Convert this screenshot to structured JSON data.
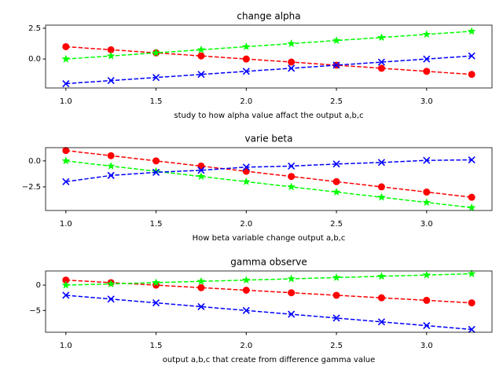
{
  "chart_data": [
    {
      "type": "line",
      "title": "change alpha",
      "xlabel": "study to how alpha value affact the output a,b,c",
      "x": [
        1.0,
        1.25,
        1.5,
        1.75,
        2.0,
        2.25,
        2.5,
        2.75,
        3.0,
        3.25
      ],
      "series": [
        {
          "color": "#ff0000",
          "marker": "o",
          "values": [
            1.0,
            0.75,
            0.5,
            0.25,
            0.0,
            -0.25,
            -0.5,
            -0.75,
            -1.0,
            -1.25
          ]
        },
        {
          "color": "#00ff00",
          "marker": "*",
          "values": [
            0.0,
            0.25,
            0.5,
            0.75,
            1.0,
            1.25,
            1.5,
            1.75,
            2.0,
            2.25
          ]
        },
        {
          "color": "#0000ff",
          "marker": "x",
          "values": [
            -2.0,
            -1.75,
            -1.5,
            -1.25,
            -1.0,
            -0.75,
            -0.5,
            -0.25,
            0.0,
            0.25
          ]
        }
      ],
      "xlim": [
        0.8875,
        3.3625
      ],
      "ylim": [
        -2.35,
        2.75
      ],
      "xticks": [
        {
          "value": 1,
          "label": "1.0"
        },
        1.5,
        {
          "value": 2,
          "label": "2.0"
        },
        2.5,
        {
          "value": 3,
          "label": "3.0"
        }
      ],
      "yticks": [
        {
          "value": 0,
          "label": "0.0"
        },
        2.5
      ]
    },
    {
      "type": "line",
      "title": "varie beta",
      "xlabel": "How beta variable change output a,b,c",
      "x": [
        1.0,
        1.25,
        1.5,
        1.75,
        2.0,
        2.25,
        2.5,
        2.75,
        3.0,
        3.25
      ],
      "series": [
        {
          "color": "#ff0000",
          "marker": "o",
          "values": [
            1.0,
            0.5,
            0.0,
            -0.5,
            -1.0,
            -1.5,
            -2.0,
            -2.5,
            -3.0,
            -3.5
          ]
        },
        {
          "color": "#00ff00",
          "marker": "*",
          "values": [
            0.0,
            -0.5,
            -1.0,
            -1.5,
            -2.0,
            -2.5,
            -3.0,
            -3.5,
            -4.0,
            -4.5
          ]
        },
        {
          "color": "#0000ff",
          "marker": "x",
          "values": [
            -2.0,
            -1.4,
            -1.1,
            -0.9,
            -0.6,
            -0.5,
            -0.3,
            -0.15,
            0.05,
            0.1
          ]
        }
      ],
      "xlim": [
        0.8875,
        3.3625
      ],
      "ylim": [
        -4.775,
        1.275
      ],
      "xticks": [
        {
          "value": 1,
          "label": "1.0"
        },
        1.5,
        {
          "value": 2,
          "label": "2.0"
        },
        2.5,
        {
          "value": 3,
          "label": "3.0"
        }
      ],
      "yticks": [
        {
          "value": -2.5,
          "label": "−2.5"
        },
        {
          "value": 0,
          "label": "0.0"
        }
      ]
    },
    {
      "type": "line",
      "title": "gamma observe",
      "xlabel": "output a,b,c that create from difference gamma value",
      "x": [
        1.0,
        1.25,
        1.5,
        1.75,
        2.0,
        2.25,
        2.5,
        2.75,
        3.0,
        3.25
      ],
      "series": [
        {
          "color": "#ff0000",
          "marker": "o",
          "values": [
            1.0,
            0.5,
            0.0,
            -0.5,
            -1.0,
            -1.5,
            -2.0,
            -2.5,
            -3.0,
            -3.5
          ]
        },
        {
          "color": "#00ff00",
          "marker": "*",
          "values": [
            0.0,
            0.25,
            0.5,
            0.75,
            1.0,
            1.25,
            1.5,
            1.75,
            2.0,
            2.25
          ]
        },
        {
          "color": "#0000ff",
          "marker": "x",
          "values": [
            -2.0,
            -2.75,
            -3.5,
            -4.25,
            -5.0,
            -5.75,
            -6.5,
            -7.25,
            -8.0,
            -8.75
          ]
        }
      ],
      "xlim": [
        0.8875,
        3.3625
      ],
      "ylim": [
        -9.3,
        2.8
      ],
      "xticks": [
        {
          "value": 1,
          "label": "1.0"
        },
        1.5,
        {
          "value": 2,
          "label": "2.0"
        },
        2.5,
        {
          "value": 3,
          "label": "3.0"
        }
      ],
      "yticks": [
        {
          "value": -5,
          "label": "−5"
        },
        0
      ]
    }
  ]
}
